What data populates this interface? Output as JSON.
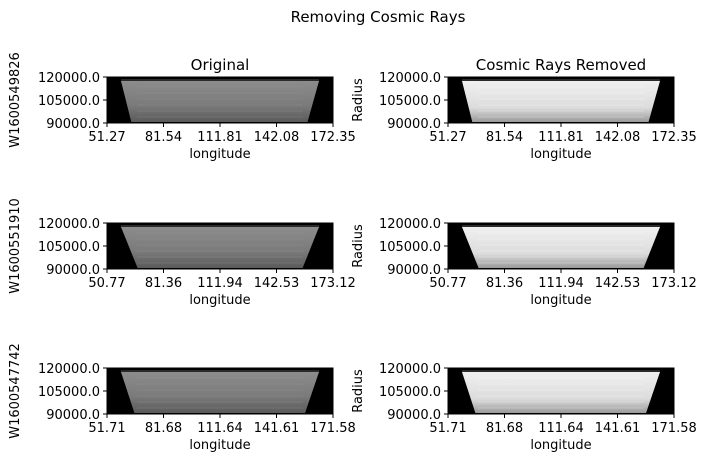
{
  "figure": {
    "suptitle": "Removing Cosmic Rays",
    "column_titles": [
      "Original",
      "Cosmic Rays Removed"
    ]
  },
  "chart_data": [
    {
      "type": "heatmap",
      "row": 0,
      "col": 0,
      "title": "Original",
      "xlabel": "longitude",
      "ylabel": "W1600549826",
      "xticks": [
        "51.27",
        "81.54",
        "111.81",
        "142.08",
        "172.35"
      ],
      "yticks": [
        "90000.0",
        "105000.0",
        "120000.0"
      ],
      "xlim": [
        51.27,
        172.35
      ],
      "ylim": [
        90000.0,
        120000.0
      ],
      "trapezoid_top": [
        51.27,
        172.35
      ],
      "trapezoid_bottom": [
        60.0,
        163.0
      ],
      "brightness": "medium"
    },
    {
      "type": "heatmap",
      "row": 0,
      "col": 1,
      "title": "Cosmic Rays Removed",
      "xlabel": "longitude",
      "ylabel": "Radius",
      "xticks": [
        "51.27",
        "81.54",
        "111.81",
        "142.08",
        "172.35"
      ],
      "yticks": [
        "90000.0",
        "105000.0",
        "120000.0"
      ],
      "xlim": [
        51.27,
        172.35
      ],
      "ylim": [
        90000.0,
        120000.0
      ],
      "trapezoid_top": [
        51.27,
        172.35
      ],
      "trapezoid_bottom": [
        60.0,
        163.0
      ],
      "brightness": "high"
    },
    {
      "type": "heatmap",
      "row": 1,
      "col": 0,
      "title": "",
      "xlabel": "longitude",
      "ylabel": "W1600551910",
      "xticks": [
        "50.77",
        "81.36",
        "111.94",
        "142.53",
        "173.12"
      ],
      "yticks": [
        "90000.0",
        "105000.0",
        "120000.0"
      ],
      "xlim": [
        50.77,
        173.12
      ],
      "ylim": [
        90000.0,
        120000.0
      ],
      "trapezoid_top": [
        50.77,
        173.12
      ],
      "trapezoid_bottom": [
        63.0,
        161.0
      ],
      "brightness": "medium"
    },
    {
      "type": "heatmap",
      "row": 1,
      "col": 1,
      "title": "",
      "xlabel": "longitude",
      "ylabel": "Radius",
      "xticks": [
        "50.77",
        "81.36",
        "111.94",
        "142.53",
        "173.12"
      ],
      "yticks": [
        "90000.0",
        "105000.0",
        "120000.0"
      ],
      "xlim": [
        50.77,
        173.12
      ],
      "ylim": [
        90000.0,
        120000.0
      ],
      "trapezoid_top": [
        50.77,
        173.12
      ],
      "trapezoid_bottom": [
        63.0,
        161.0
      ],
      "brightness": "high"
    },
    {
      "type": "heatmap",
      "row": 2,
      "col": 0,
      "title": "",
      "xlabel": "longitude",
      "ylabel": "W1600547742",
      "xticks": [
        "51.71",
        "81.68",
        "111.64",
        "141.61",
        "171.58"
      ],
      "yticks": [
        "90000.0",
        "105000.0",
        "120000.0"
      ],
      "xlim": [
        51.71,
        171.58
      ],
      "ylim": [
        90000.0,
        120000.0
      ],
      "trapezoid_top": [
        51.71,
        171.58
      ],
      "trapezoid_bottom": [
        62.0,
        161.0
      ],
      "brightness": "medium"
    },
    {
      "type": "heatmap",
      "row": 2,
      "col": 1,
      "title": "",
      "xlabel": "longitude",
      "ylabel": "Radius",
      "xticks": [
        "51.71",
        "81.68",
        "111.64",
        "141.61",
        "171.58"
      ],
      "yticks": [
        "90000.0",
        "105000.0",
        "120000.0"
      ],
      "xlim": [
        51.71,
        171.58
      ],
      "ylim": [
        90000.0,
        120000.0
      ],
      "trapezoid_top": [
        51.71,
        171.58
      ],
      "trapezoid_bottom": [
        62.0,
        161.0
      ],
      "brightness": "high"
    }
  ]
}
